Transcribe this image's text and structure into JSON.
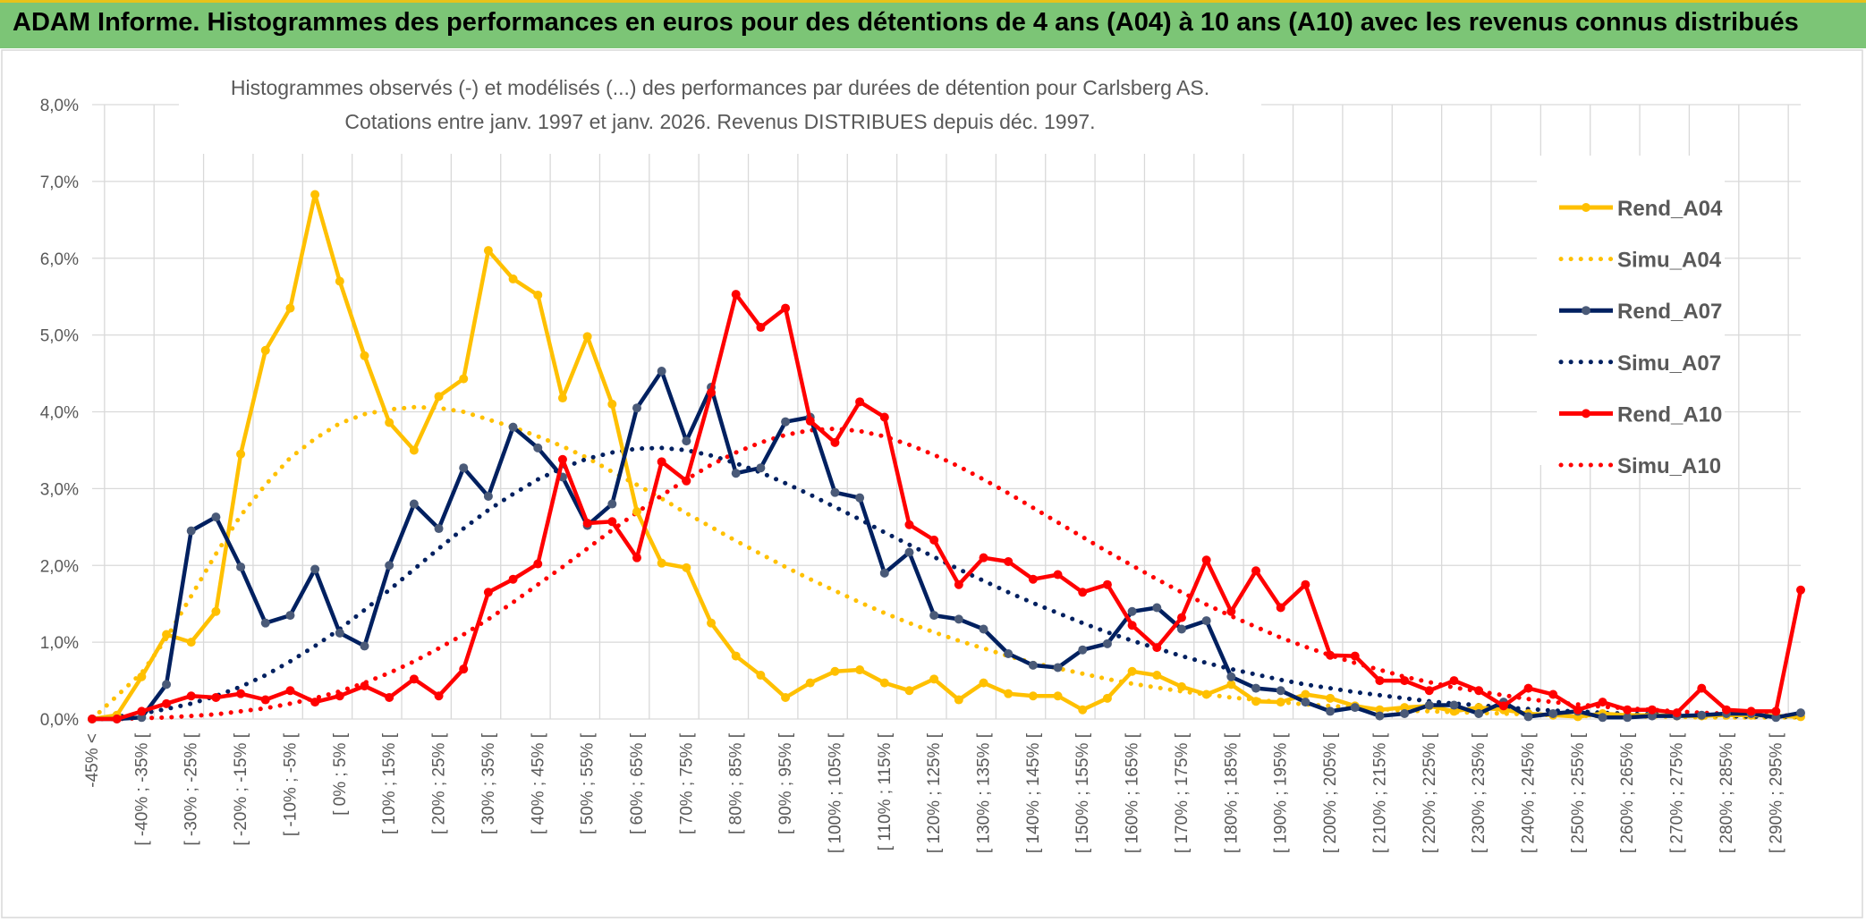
{
  "header": {
    "banner_title": "ADAM Informe. Histogrammes des performances en euros pour des détentions de 4 ans (A04) à 10 ans (A10) avec les revenus connus distribués"
  },
  "colors": {
    "banner_bg": "#7cc576",
    "gold": "#FFC000",
    "navy": "#002060",
    "red": "#FF0000",
    "grid": "#D9D9D9",
    "text": "#595959"
  },
  "chart_data": {
    "type": "line",
    "title_line1": "Histogrammes observés (-) et modélisés (...) des performances par durées de détention pour Carlsberg AS.",
    "title_line2": "Cotations entre janv. 1997 et janv. 2026. Revenus DISTRIBUES depuis déc. 1997.",
    "y_ticks": [
      "0,0%",
      "1,0%",
      "2,0%",
      "3,0%",
      "4,0%",
      "5,0%",
      "6,0%",
      "7,0%",
      "8,0%"
    ],
    "ylim": [
      0,
      8
    ],
    "grid": true,
    "legend_position": "right",
    "x_tick_labels": [
      "-45% <",
      "[ -40% ; -35% [",
      "[ -30% ; -25% [",
      "[ -20% ; -15% [",
      "[ -10% ; -5% [",
      "[ 0% ; 5% [",
      "[ 10% ; 15% [",
      "[ 20% ; 25% [",
      "[ 30% ; 35% [",
      "[ 40% ; 45% [",
      "[ 50% ; 55% [",
      "[ 60% ; 65% [",
      "[ 70% ; 75% [",
      "[ 80% ; 85% [",
      "[ 90% ; 95% [",
      "[ 100% ; 105% [",
      "[ 110% ; 115% [",
      "[ 120% ; 125% [",
      "[ 130% ; 135% [",
      "[ 140% ; 145% [",
      "[ 150% ; 155% [",
      "[ 160% ; 165% [",
      "[ 170% ; 175% [",
      "[ 180% ; 185% [",
      "[ 190% ; 195% [",
      "[ 200% ; 205% [",
      "[ 210% ; 215% [",
      "[ 220% ; 225% [",
      "[ 230% ; 235% [",
      "[ 240% ; 245% [",
      "[ 250% ; 255% [",
      "[ 260% ; 265% [",
      "[ 270% ; 275% [",
      "[ 280% ; 285% [",
      "[ 290% ; 295% ["
    ],
    "x_tick_positions": [
      0,
      2,
      4,
      6,
      8,
      10,
      12,
      14,
      16,
      18,
      20,
      22,
      24,
      26,
      28,
      30,
      32,
      34,
      36,
      38,
      40,
      42,
      44,
      46,
      48,
      50,
      52,
      54,
      56,
      58,
      60,
      62,
      64,
      66,
      68
    ],
    "n_categories": 70,
    "series": [
      {
        "name": "Rend_A04",
        "style": "solid",
        "color": "#FFC000",
        "values": [
          0.0,
          0.05,
          0.55,
          1.1,
          1.0,
          1.4,
          3.45,
          4.8,
          5.35,
          6.83,
          5.7,
          4.73,
          3.86,
          3.5,
          4.2,
          4.43,
          6.1,
          5.73,
          5.52,
          4.18,
          4.98,
          4.1,
          2.7,
          2.03,
          1.97,
          1.25,
          0.82,
          0.57,
          0.28,
          0.47,
          0.62,
          0.64,
          0.47,
          0.37,
          0.52,
          0.25,
          0.47,
          0.33,
          0.3,
          0.3,
          0.12,
          0.27,
          0.62,
          0.57,
          0.42,
          0.32,
          0.45,
          0.23,
          0.22,
          0.32,
          0.27,
          0.17,
          0.12,
          0.15,
          0.17,
          0.1,
          0.15,
          0.12,
          0.07,
          0.05,
          0.03,
          0.07,
          0.05,
          0.05,
          0.04,
          0.04,
          0.05,
          0.05,
          0.04,
          0.03
        ]
      },
      {
        "name": "Simu_A04",
        "style": "dotted",
        "color": "#FFC000",
        "values": [
          0.0,
          0.3,
          0.6,
          1.05,
          1.6,
          2.15,
          2.65,
          3.05,
          3.4,
          3.65,
          3.85,
          3.97,
          4.03,
          4.06,
          4.05,
          4.0,
          3.9,
          3.8,
          3.68,
          3.55,
          3.4,
          3.22,
          3.05,
          2.87,
          2.68,
          2.5,
          2.32,
          2.15,
          1.98,
          1.82,
          1.67,
          1.52,
          1.38,
          1.25,
          1.13,
          1.02,
          0.92,
          0.82,
          0.73,
          0.66,
          0.59,
          0.52,
          0.46,
          0.41,
          0.36,
          0.32,
          0.28,
          0.25,
          0.22,
          0.19,
          0.17,
          0.15,
          0.13,
          0.11,
          0.1,
          0.09,
          0.08,
          0.07,
          0.06,
          0.05,
          0.04,
          0.04,
          0.03,
          0.03,
          0.03,
          0.02,
          0.02,
          0.02,
          0.02,
          0.02
        ]
      },
      {
        "name": "Rend_A07",
        "style": "solid",
        "color": "#002060",
        "values": [
          0.0,
          0.0,
          0.02,
          0.45,
          2.45,
          2.63,
          1.98,
          1.25,
          1.35,
          1.95,
          1.12,
          0.95,
          2.0,
          2.8,
          2.48,
          3.27,
          2.9,
          3.8,
          3.53,
          3.15,
          2.52,
          2.8,
          4.05,
          4.53,
          3.62,
          4.32,
          3.2,
          3.27,
          3.87,
          3.93,
          2.95,
          2.88,
          1.9,
          2.17,
          1.35,
          1.3,
          1.17,
          0.85,
          0.7,
          0.67,
          0.9,
          0.98,
          1.4,
          1.45,
          1.17,
          1.28,
          0.55,
          0.4,
          0.37,
          0.22,
          0.1,
          0.15,
          0.04,
          0.07,
          0.18,
          0.18,
          0.07,
          0.22,
          0.03,
          0.07,
          0.1,
          0.02,
          0.02,
          0.04,
          0.04,
          0.05,
          0.07,
          0.07,
          0.02,
          0.08
        ]
      },
      {
        "name": "Simu_A07",
        "style": "dotted",
        "color": "#002060",
        "values": [
          0.0,
          0.03,
          0.07,
          0.13,
          0.2,
          0.3,
          0.42,
          0.57,
          0.75,
          0.95,
          1.17,
          1.42,
          1.68,
          1.95,
          2.22,
          2.48,
          2.72,
          2.93,
          3.12,
          3.27,
          3.39,
          3.47,
          3.52,
          3.53,
          3.5,
          3.43,
          3.33,
          3.21,
          3.07,
          2.92,
          2.76,
          2.6,
          2.43,
          2.27,
          2.11,
          1.95,
          1.8,
          1.65,
          1.51,
          1.38,
          1.25,
          1.13,
          1.02,
          0.92,
          0.82,
          0.73,
          0.65,
          0.58,
          0.51,
          0.45,
          0.4,
          0.35,
          0.31,
          0.27,
          0.23,
          0.2,
          0.18,
          0.15,
          0.13,
          0.11,
          0.1,
          0.08,
          0.07,
          0.06,
          0.05,
          0.05,
          0.04,
          0.03,
          0.03,
          0.03
        ]
      },
      {
        "name": "Rend_A10",
        "style": "solid",
        "color": "#FF0000",
        "values": [
          0.0,
          0.0,
          0.1,
          0.2,
          0.3,
          0.28,
          0.33,
          0.25,
          0.37,
          0.22,
          0.3,
          0.43,
          0.28,
          0.52,
          0.3,
          0.65,
          1.65,
          1.82,
          2.02,
          3.38,
          2.55,
          2.57,
          2.1,
          3.35,
          3.1,
          4.25,
          5.53,
          5.1,
          5.35,
          3.88,
          3.6,
          4.13,
          3.93,
          2.53,
          2.33,
          1.75,
          2.1,
          2.05,
          1.82,
          1.88,
          1.65,
          1.75,
          1.22,
          0.93,
          1.32,
          2.07,
          1.4,
          1.93,
          1.45,
          1.75,
          0.83,
          0.82,
          0.5,
          0.5,
          0.37,
          0.5,
          0.37,
          0.17,
          0.4,
          0.32,
          0.12,
          0.22,
          0.12,
          0.12,
          0.08,
          0.4,
          0.12,
          0.1,
          0.1,
          1.68
        ]
      },
      {
        "name": "Simu_A10",
        "style": "dotted",
        "color": "#FF0000",
        "values": [
          0.0,
          0.0,
          0.01,
          0.02,
          0.04,
          0.06,
          0.1,
          0.14,
          0.2,
          0.27,
          0.36,
          0.47,
          0.6,
          0.75,
          0.92,
          1.1,
          1.3,
          1.52,
          1.75,
          1.98,
          2.22,
          2.46,
          2.69,
          2.91,
          3.12,
          3.31,
          3.47,
          3.6,
          3.7,
          3.76,
          3.78,
          3.75,
          3.68,
          3.57,
          3.44,
          3.29,
          3.12,
          2.94,
          2.75,
          2.56,
          2.37,
          2.18,
          2.0,
          1.82,
          1.65,
          1.49,
          1.34,
          1.2,
          1.06,
          0.94,
          0.83,
          0.73,
          0.64,
          0.55,
          0.48,
          0.41,
          0.36,
          0.31,
          0.26,
          0.22,
          0.19,
          0.16,
          0.14,
          0.12,
          0.1,
          0.08,
          0.07,
          0.06,
          0.05,
          0.04
        ]
      }
    ]
  }
}
